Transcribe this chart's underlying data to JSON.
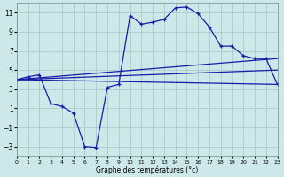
{
  "xlabel": "Graphe des températures (°c)",
  "background_color": "#cce8e8",
  "grid_color": "#aacccc",
  "line_color": "#1a1aaa",
  "ylim": [
    -4,
    12
  ],
  "xlim": [
    0,
    23
  ],
  "yticks": [
    -3,
    -1,
    1,
    3,
    5,
    7,
    9,
    11
  ],
  "xticks": [
    0,
    1,
    2,
    3,
    4,
    5,
    6,
    7,
    8,
    9,
    10,
    11,
    12,
    13,
    14,
    15,
    16,
    17,
    18,
    19,
    20,
    21,
    22,
    23
  ],
  "line1_x": [
    0,
    23
  ],
  "line1_y": [
    4.0,
    6.2
  ],
  "line2_x": [
    0,
    23
  ],
  "line2_y": [
    4.0,
    5.0
  ],
  "line3_x": [
    0,
    23
  ],
  "line3_y": [
    4.0,
    3.5
  ],
  "line4_x": [
    0,
    1,
    2,
    3,
    4,
    5,
    6,
    7,
    8,
    9,
    10,
    11,
    12,
    13,
    14,
    15,
    16,
    17,
    18,
    19,
    20,
    21,
    22,
    23
  ],
  "line4_y": [
    4.0,
    4.3,
    4.5,
    1.5,
    1.2,
    0.5,
    -3.0,
    -3.1,
    3.2,
    3.5,
    10.7,
    9.8,
    10.0,
    10.3,
    11.5,
    11.6,
    10.9,
    9.5,
    7.5,
    7.5,
    6.5,
    6.2,
    6.2,
    3.5
  ]
}
